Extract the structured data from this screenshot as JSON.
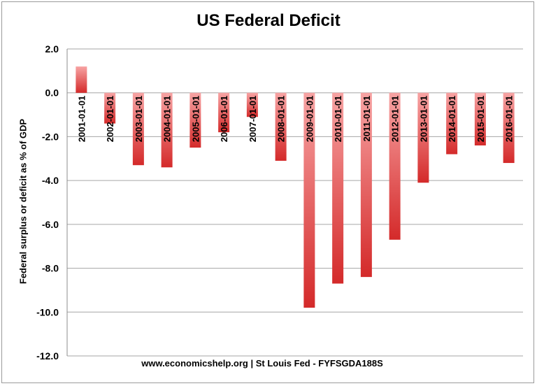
{
  "chart_data": {
    "type": "bar",
    "title": "US Federal Deficit",
    "ylabel": "Federal surplus or deficit as % of GDP",
    "xlabel": "",
    "source": "www.economicshelp.org | St Louis Fed - FYFSGDA188S",
    "categories": [
      "2001-01-01",
      "2002-01-01",
      "2003-01-01",
      "2004-01-01",
      "2005-01-01",
      "2006-01-01",
      "2007-01-01",
      "2008-01-01",
      "2009-01-01",
      "2010-01-01",
      "2011-01-01",
      "2012-01-01",
      "2013-01-01",
      "2014-01-01",
      "2015-01-01",
      "2016-01-01"
    ],
    "values": [
      1.2,
      -1.4,
      -3.3,
      -3.4,
      -2.5,
      -1.8,
      -1.1,
      -3.1,
      -9.8,
      -8.7,
      -8.4,
      -6.7,
      -4.1,
      -2.8,
      -2.4,
      -3.2
    ],
    "ylim": [
      -12,
      2
    ],
    "yticks": [
      "2.0",
      "0.0",
      "-2.0",
      "-4.0",
      "-6.0",
      "-8.0",
      "-10.0",
      "-12.0"
    ],
    "grid": true,
    "colors": {
      "bar_light": "#f7a3a3",
      "bar_dark": "#d42a2a",
      "grid": "#a6a6a6"
    }
  }
}
